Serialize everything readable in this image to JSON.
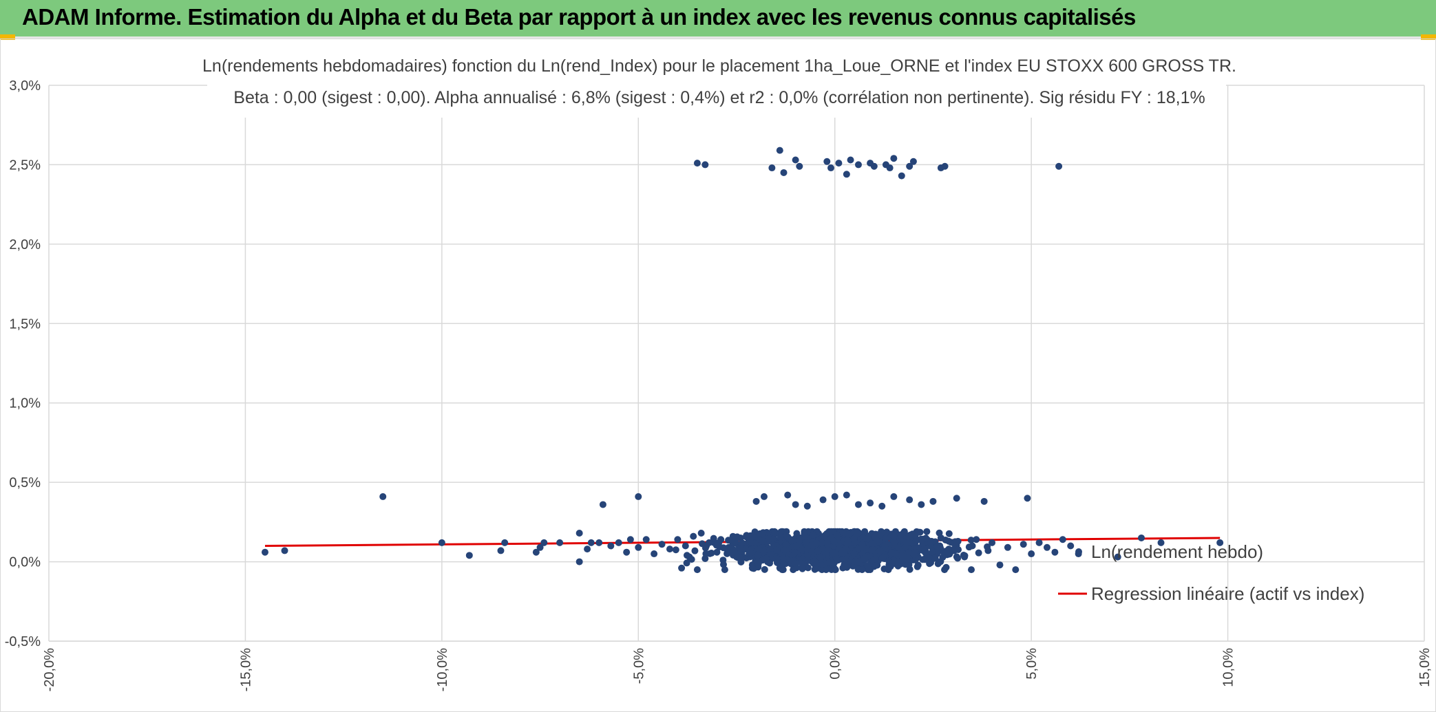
{
  "header": {
    "title": "ADAM Informe. Estimation du Alpha et du Beta par rapport à un index avec les revenus connus capitalisés"
  },
  "colors": {
    "header_bg": "#7dc97d",
    "points": "#264478",
    "regression": "#e00000",
    "grid": "#d9d9d9",
    "accent": "#f2b705"
  },
  "chart_data": {
    "type": "scatter",
    "title_line1": "Ln(rendements hebdomadaires) fonction du Ln(rend_Index) pour le placement 1ha_Loue_ORNE et l'index EU STOXX 600 GROSS TR.",
    "title_line2": "Beta : 0,00 (sigest : 0,00). Alpha annualisé : 6,8% (sigest : 0,4%) et r2 : 0,0% (corrélation non pertinente). Sig résidu FY : 18,1%",
    "xlim": [
      -20,
      15
    ],
    "ylim": [
      -0.5,
      3.0
    ],
    "x_ticks": [
      -20,
      -15,
      -10,
      -5,
      0,
      5,
      10,
      15
    ],
    "x_tick_labels": [
      "-20,0%",
      "-15,0%",
      "-10,0%",
      "-5,0%",
      "0,0%",
      "5,0%",
      "10,0%",
      "15,0%"
    ],
    "y_ticks": [
      -0.5,
      0,
      0.5,
      1.0,
      1.5,
      2.0,
      2.5,
      3.0
    ],
    "y_tick_labels": [
      "-0,5%",
      "0,0%",
      "0,5%",
      "1,0%",
      "1,5%",
      "2,0%",
      "2,5%",
      "3,0%"
    ],
    "grid": true,
    "series": [
      {
        "name": "Ln(rendement hebdo)",
        "kind": "points",
        "points": [
          [
            -14.5,
            0.06
          ],
          [
            -14.0,
            0.07
          ],
          [
            -11.5,
            0.41
          ],
          [
            -10.0,
            0.12
          ],
          [
            -9.3,
            0.04
          ],
          [
            -8.5,
            0.07
          ],
          [
            -8.4,
            0.12
          ],
          [
            -7.6,
            0.06
          ],
          [
            -7.5,
            0.09
          ],
          [
            -7.4,
            0.12
          ],
          [
            -7.0,
            0.12
          ],
          [
            -6.5,
            0.18
          ],
          [
            -6.5,
            0.0
          ],
          [
            -6.3,
            0.08
          ],
          [
            -6.2,
            0.12
          ],
          [
            -6.0,
            0.12
          ],
          [
            -5.9,
            0.36
          ],
          [
            -5.7,
            0.1
          ],
          [
            -5.5,
            0.12
          ],
          [
            -5.3,
            0.06
          ],
          [
            -5.2,
            0.14
          ],
          [
            -5.0,
            0.41
          ],
          [
            -5.0,
            0.09
          ],
          [
            -4.8,
            0.14
          ],
          [
            -4.6,
            0.05
          ],
          [
            -4.4,
            0.11
          ],
          [
            -4.2,
            0.08
          ],
          [
            -4.0,
            0.14
          ],
          [
            -3.9,
            -0.04
          ],
          [
            -3.8,
            0.1
          ],
          [
            -3.7,
            0.03
          ],
          [
            -3.6,
            0.16
          ],
          [
            -3.5,
            -0.05
          ],
          [
            -3.4,
            0.18
          ],
          [
            -3.3,
            0.02
          ],
          [
            -3.2,
            0.12
          ],
          [
            -3.0,
            0.06
          ],
          [
            -2.9,
            0.14
          ],
          [
            -2.8,
            -0.05
          ],
          [
            -2.7,
            0.09
          ],
          [
            -2.5,
            0.03
          ],
          [
            -2.4,
            0.15
          ],
          [
            -2.2,
            0.11
          ],
          [
            -2.1,
            -0.02
          ],
          [
            -2.0,
            0.38
          ],
          [
            -1.9,
            0.07
          ],
          [
            -1.8,
            0.41
          ],
          [
            -1.7,
            0.13
          ],
          [
            -1.6,
            0.04
          ],
          [
            -1.5,
            0.09
          ],
          [
            -1.4,
            -0.04
          ],
          [
            -1.3,
            0.16
          ],
          [
            -1.2,
            0.42
          ],
          [
            -1.1,
            0.05
          ],
          [
            -1.0,
            0.36
          ],
          [
            -0.9,
            0.12
          ],
          [
            -0.8,
            -0.02
          ],
          [
            -0.7,
            0.35
          ],
          [
            -0.6,
            0.09
          ],
          [
            -0.5,
            0.14
          ],
          [
            -0.4,
            0.01
          ],
          [
            -0.3,
            0.39
          ],
          [
            -0.2,
            0.11
          ],
          [
            -0.1,
            0.06
          ],
          [
            0.0,
            0.41
          ],
          [
            0.1,
            0.13
          ],
          [
            0.2,
            0.03
          ],
          [
            0.3,
            0.42
          ],
          [
            0.4,
            0.08
          ],
          [
            0.5,
            0.16
          ],
          [
            0.6,
            0.36
          ],
          [
            0.7,
            0.05
          ],
          [
            0.8,
            0.12
          ],
          [
            0.9,
            0.37
          ],
          [
            1.0,
            -0.03
          ],
          [
            1.1,
            0.1
          ],
          [
            1.2,
            0.35
          ],
          [
            1.3,
            0.14
          ],
          [
            1.4,
            0.04
          ],
          [
            1.5,
            0.41
          ],
          [
            1.6,
            0.09
          ],
          [
            1.7,
            0.17
          ],
          [
            1.8,
            0.02
          ],
          [
            1.9,
            0.39
          ],
          [
            2.0,
            0.11
          ],
          [
            2.1,
            0.06
          ],
          [
            2.2,
            0.36
          ],
          [
            2.3,
            0.13
          ],
          [
            2.5,
            0.38
          ],
          [
            2.6,
            0.05
          ],
          [
            2.7,
            0.15
          ],
          [
            2.9,
            0.08
          ],
          [
            3.0,
            0.12
          ],
          [
            3.1,
            0.4
          ],
          [
            3.3,
            0.03
          ],
          [
            3.5,
            0.1
          ],
          [
            3.6,
            0.14
          ],
          [
            3.8,
            0.38
          ],
          [
            3.9,
            0.07
          ],
          [
            4.0,
            0.12
          ],
          [
            4.2,
            -0.02
          ],
          [
            4.4,
            0.09
          ],
          [
            4.6,
            -0.05
          ],
          [
            4.8,
            0.11
          ],
          [
            4.9,
            0.4
          ],
          [
            5.0,
            0.05
          ],
          [
            5.2,
            0.12
          ],
          [
            5.4,
            0.09
          ],
          [
            5.6,
            0.06
          ],
          [
            5.8,
            0.14
          ],
          [
            6.0,
            0.1
          ],
          [
            6.2,
            0.05
          ],
          [
            7.2,
            0.03
          ],
          [
            7.8,
            0.15
          ],
          [
            8.3,
            0.12
          ],
          [
            9.8,
            0.12
          ],
          [
            -3.5,
            2.51
          ],
          [
            -3.3,
            2.5
          ],
          [
            -1.6,
            2.48
          ],
          [
            -1.4,
            2.59
          ],
          [
            -1.3,
            2.45
          ],
          [
            -1.0,
            2.53
          ],
          [
            -0.9,
            2.49
          ],
          [
            -0.2,
            2.52
          ],
          [
            -0.1,
            2.48
          ],
          [
            0.1,
            2.51
          ],
          [
            0.3,
            2.44
          ],
          [
            0.4,
            2.53
          ],
          [
            0.6,
            2.5
          ],
          [
            0.9,
            2.51
          ],
          [
            1.0,
            2.49
          ],
          [
            1.3,
            2.5
          ],
          [
            1.4,
            2.48
          ],
          [
            1.5,
            2.54
          ],
          [
            1.7,
            2.43
          ],
          [
            1.9,
            2.49
          ],
          [
            2.0,
            2.52
          ],
          [
            2.7,
            2.48
          ],
          [
            2.8,
            2.49
          ],
          [
            5.7,
            2.49
          ]
        ]
      },
      {
        "name": "Regression linéaire (actif vs index)",
        "kind": "line",
        "x": [
          -14.5,
          9.8
        ],
        "y": [
          0.1,
          0.15
        ]
      }
    ]
  }
}
